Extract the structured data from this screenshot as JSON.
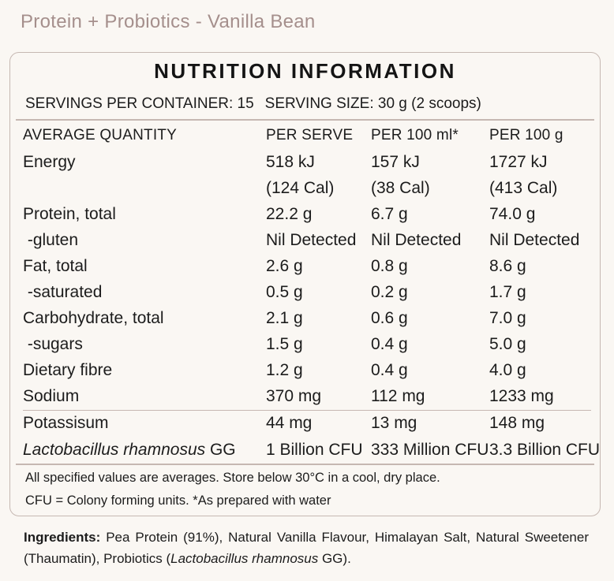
{
  "page": {
    "title": "Protein + Probiotics - Vanilla Bean"
  },
  "panel": {
    "heading": "NUTRITION INFORMATION",
    "servings_per_container": "SERVINGS PER CONTAINER: 15",
    "serving_size": "SERVING SIZE: 30 g (2 scoops)",
    "columns": [
      "AVERAGE QUANTITY",
      "PER SERVE",
      "PER 100 ml*",
      "PER 100 g"
    ],
    "rows": [
      {
        "name": "Energy",
        "per_serve": "518 kJ",
        "per_100ml": "157 kJ",
        "per_100g": "1727 kJ"
      },
      {
        "name": "",
        "per_serve": "(124 Cal)",
        "per_100ml": "(38 Cal)",
        "per_100g": "(413 Cal)"
      },
      {
        "name": "Protein, total",
        "per_serve": "22.2 g",
        "per_100ml": "6.7 g",
        "per_100g": "74.0 g"
      },
      {
        "name": " -gluten",
        "per_serve": "Nil Detected",
        "per_100ml": "Nil Detected",
        "per_100g": "Nil Detected"
      },
      {
        "name": "Fat, total",
        "per_serve": "2.6 g",
        "per_100ml": "0.8 g",
        "per_100g": "8.6 g"
      },
      {
        "name": " -saturated",
        "per_serve": "0.5 g",
        "per_100ml": "0.2 g",
        "per_100g": "1.7 g"
      },
      {
        "name": "Carbohydrate, total",
        "per_serve": "2.1 g",
        "per_100ml": "0.6 g",
        "per_100g": "7.0 g"
      },
      {
        "name": " -sugars",
        "per_serve": "1.5 g",
        "per_100ml": "0.4 g",
        "per_100g": "5.0 g"
      },
      {
        "name": "Dietary fibre",
        "per_serve": "1.2 g",
        "per_100ml": "0.4 g",
        "per_100g": "4.0 g"
      },
      {
        "name": "Sodium",
        "per_serve": "370 mg",
        "per_100ml": "112 mg",
        "per_100g": "1233 mg"
      }
    ],
    "extra_rows": [
      {
        "name": "Potassisum",
        "per_serve": "44 mg",
        "per_100ml": "13 mg",
        "per_100g": "148 mg"
      },
      {
        "name": "Lactobacillus rhamnosus",
        "name_suffix": " GG",
        "per_serve": "1 Billion CFU",
        "per_100ml": "333 Million CFU",
        "per_100g": "3.3 Billion CFU"
      }
    ],
    "footnote_1": "All specified values are averages. Store below 30°C in a cool, dry place.",
    "footnote_2": "CFU = Colony forming units. *As prepared with water"
  },
  "ingredients": {
    "label": "Ingredients:",
    "text_1": " Pea Protein (91%), Natural Vanilla Flavour, Himalayan Salt, Natural Sweetener (Thaumatin), Probiotics (",
    "italic": "Lactobacillus rhamnosus",
    "text_2": " GG)."
  },
  "colors": {
    "title": "#a58f8c",
    "border": "#c6b8b2",
    "background": "#faf7f3",
    "text": "#1c1c1c"
  }
}
